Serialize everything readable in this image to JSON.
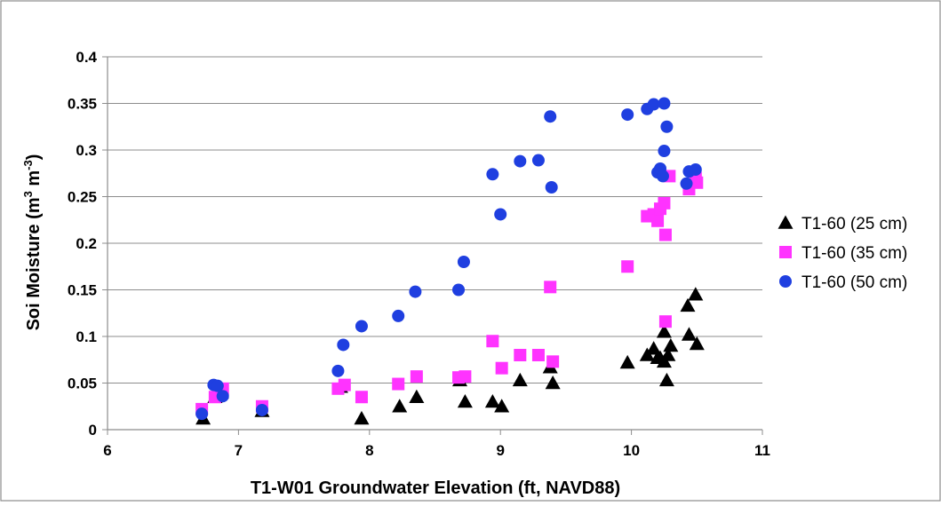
{
  "chart_data": {
    "type": "scatter",
    "xlabel": "T1-W01 Groundwater Elevation (ft, NAVD88)",
    "ylabel_main": "Soi Moisture (m",
    "ylabel_sup1": "3",
    "ylabel_mid": " m",
    "ylabel_sup2": "-3",
    "ylabel_end": ")",
    "xlim": [
      6,
      11
    ],
    "ylim": [
      0,
      0.4
    ],
    "x_ticks": [
      6,
      7,
      8,
      9,
      10,
      11
    ],
    "x_tick_labels": [
      "6",
      "7",
      "8",
      "9",
      "10",
      "11"
    ],
    "y_ticks": [
      0,
      0.05,
      0.1,
      0.15,
      0.2,
      0.25,
      0.3,
      0.35,
      0.4
    ],
    "y_tick_labels": [
      "0",
      "0.05",
      "0.1",
      "0.15",
      "0.2",
      "0.25",
      "0.3",
      "0.35",
      "0.4"
    ],
    "grid": "horizontal",
    "legend_position": "right",
    "series": [
      {
        "name": "T1-60 (25 cm)",
        "marker": "triangle",
        "color": "#000000",
        "points": [
          [
            6.73,
            0.012
          ],
          [
            6.82,
            0.035
          ],
          [
            6.87,
            0.04
          ],
          [
            7.18,
            0.02
          ],
          [
            7.78,
            0.046
          ],
          [
            7.94,
            0.012
          ],
          [
            8.23,
            0.025
          ],
          [
            8.36,
            0.035
          ],
          [
            8.69,
            0.053
          ],
          [
            8.73,
            0.03
          ],
          [
            8.94,
            0.03
          ],
          [
            9.01,
            0.025
          ],
          [
            9.15,
            0.053
          ],
          [
            9.38,
            0.067
          ],
          [
            9.4,
            0.05
          ],
          [
            9.97,
            0.072
          ],
          [
            10.12,
            0.08
          ],
          [
            10.17,
            0.087
          ],
          [
            10.2,
            0.077
          ],
          [
            10.22,
            0.077
          ],
          [
            10.25,
            0.105
          ],
          [
            10.25,
            0.073
          ],
          [
            10.27,
            0.053
          ],
          [
            10.28,
            0.08
          ],
          [
            10.3,
            0.09
          ],
          [
            10.43,
            0.133
          ],
          [
            10.44,
            0.102
          ],
          [
            10.49,
            0.145
          ],
          [
            10.5,
            0.092
          ]
        ]
      },
      {
        "name": "T1-60 (35 cm)",
        "marker": "square",
        "color": "#ff33ff",
        "points": [
          [
            6.72,
            0.022
          ],
          [
            6.82,
            0.035
          ],
          [
            6.88,
            0.044
          ],
          [
            7.18,
            0.025
          ],
          [
            7.76,
            0.044
          ],
          [
            7.81,
            0.048
          ],
          [
            7.94,
            0.035
          ],
          [
            8.22,
            0.049
          ],
          [
            8.36,
            0.057
          ],
          [
            8.68,
            0.056
          ],
          [
            8.73,
            0.057
          ],
          [
            8.94,
            0.095
          ],
          [
            9.01,
            0.066
          ],
          [
            9.15,
            0.08
          ],
          [
            9.29,
            0.08
          ],
          [
            9.38,
            0.153
          ],
          [
            9.4,
            0.073
          ],
          [
            9.97,
            0.175
          ],
          [
            10.12,
            0.229
          ],
          [
            10.17,
            0.231
          ],
          [
            10.2,
            0.224
          ],
          [
            10.22,
            0.237
          ],
          [
            10.25,
            0.243
          ],
          [
            10.26,
            0.209
          ],
          [
            10.26,
            0.116
          ],
          [
            10.29,
            0.272
          ],
          [
            10.44,
            0.258
          ],
          [
            10.49,
            0.27
          ],
          [
            10.5,
            0.265
          ]
        ]
      },
      {
        "name": "T1-60 (50 cm)",
        "marker": "circle",
        "color": "#1f3fe0",
        "points": [
          [
            6.72,
            0.017
          ],
          [
            6.81,
            0.048
          ],
          [
            6.84,
            0.047
          ],
          [
            6.88,
            0.036
          ],
          [
            7.18,
            0.021
          ],
          [
            7.76,
            0.063
          ],
          [
            7.8,
            0.091
          ],
          [
            7.94,
            0.111
          ],
          [
            8.22,
            0.122
          ],
          [
            8.35,
            0.148
          ],
          [
            8.68,
            0.15
          ],
          [
            8.72,
            0.18
          ],
          [
            8.94,
            0.274
          ],
          [
            9.0,
            0.231
          ],
          [
            9.15,
            0.288
          ],
          [
            9.29,
            0.289
          ],
          [
            9.38,
            0.336
          ],
          [
            9.39,
            0.26
          ],
          [
            9.97,
            0.338
          ],
          [
            10.12,
            0.344
          ],
          [
            10.17,
            0.349
          ],
          [
            10.2,
            0.276
          ],
          [
            10.22,
            0.28
          ],
          [
            10.24,
            0.272
          ],
          [
            10.25,
            0.35
          ],
          [
            10.25,
            0.299
          ],
          [
            10.27,
            0.325
          ],
          [
            10.42,
            0.264
          ],
          [
            10.44,
            0.277
          ],
          [
            10.49,
            0.279
          ]
        ]
      }
    ]
  }
}
